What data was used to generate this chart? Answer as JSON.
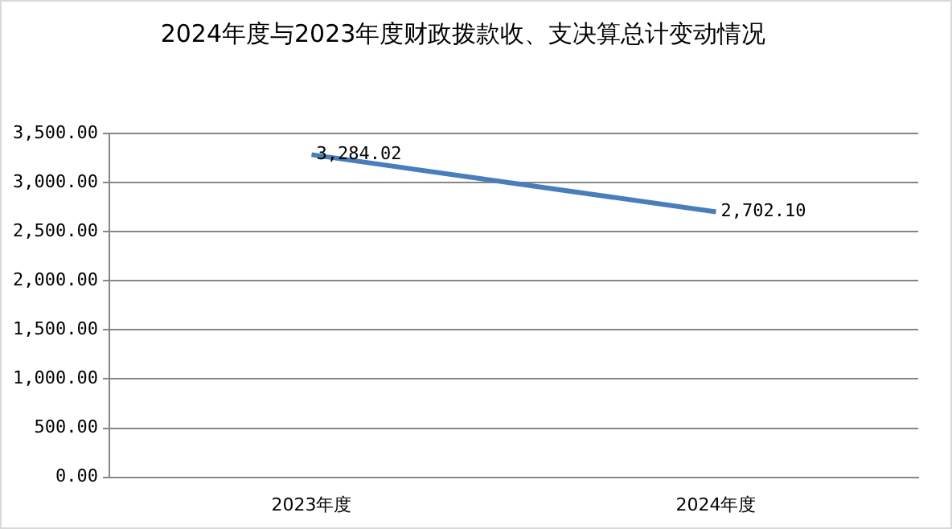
{
  "chart_data": {
    "type": "line",
    "title": "2024年度与2023年度财政拨款收、支决算总计变动情况",
    "categories": [
      "2023年度",
      "2024年度"
    ],
    "series": [
      {
        "color": "#4a7ebb",
        "values": [
          3284.02,
          2702.1
        ],
        "value_labels": [
          "3,284.02",
          "2,702.10"
        ]
      }
    ],
    "ylim": [
      0,
      3500
    ],
    "yticks": [
      {
        "value": 0,
        "label": "0.00"
      },
      {
        "value": 500,
        "label": "500.00"
      },
      {
        "value": 1000,
        "label": "1,000.00"
      },
      {
        "value": 1500,
        "label": "1,500.00"
      },
      {
        "value": 2000,
        "label": "2,000.00"
      },
      {
        "value": 2500,
        "label": "2,500.00"
      },
      {
        "value": 3000,
        "label": "3,000.00"
      },
      {
        "value": 3500,
        "label": "3,500.00"
      }
    ],
    "grid": "y",
    "legend": false,
    "marker": "none",
    "line_style": "solid"
  }
}
